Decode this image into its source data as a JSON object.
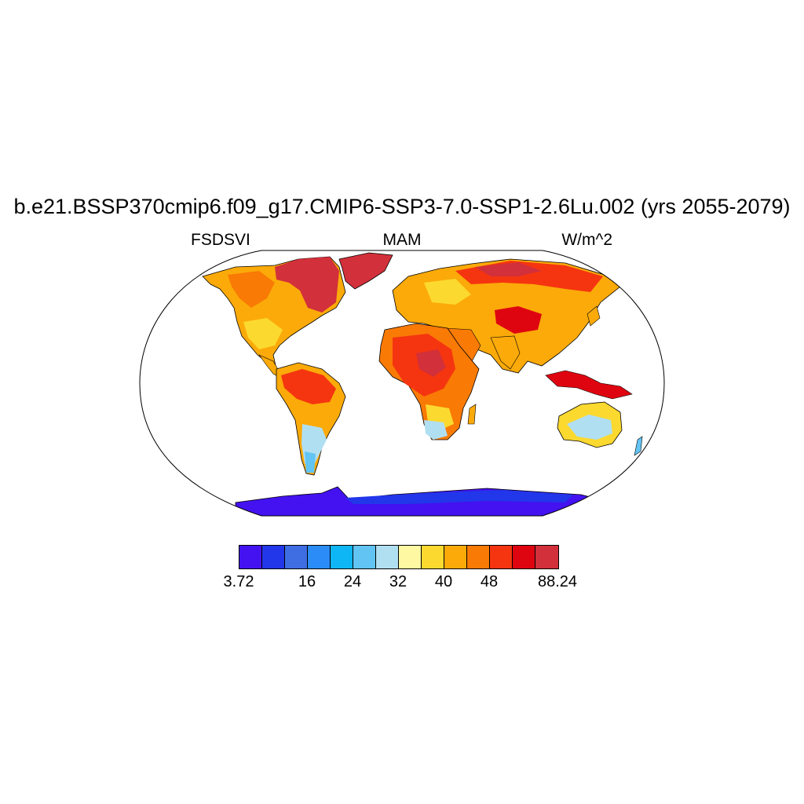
{
  "title": "b.e21.BSSP370cmip6.f09_g17.CMIP6-SSP3-7.0-SSP1-2.6Lu.002 (yrs 2055-2079)",
  "left_string": "FSDSVI",
  "center_string": "MAM",
  "right_string": "W/m^2",
  "map": {
    "projection": "Robinson",
    "variable": "FSDSVI",
    "season": "MAM",
    "units": "W/m^2"
  },
  "colorbar": {
    "colors": [
      "#4412f0",
      "#2236ea",
      "#3f6ee3",
      "#2b8cf7",
      "#0eb6f5",
      "#61c4f3",
      "#b1dff2",
      "#fdf8a1",
      "#fcd92f",
      "#fbaa09",
      "#f97a05",
      "#f53510",
      "#df0510",
      "#d2303a"
    ],
    "labels": [
      {
        "text": "3.72",
        "index": 0
      },
      {
        "text": "16",
        "index": 3
      },
      {
        "text": "24",
        "index": 5
      },
      {
        "text": "32",
        "index": 7
      },
      {
        "text": "40",
        "index": 9
      },
      {
        "text": "48",
        "index": 11
      },
      {
        "text": "88.24",
        "index": 14
      }
    ]
  }
}
